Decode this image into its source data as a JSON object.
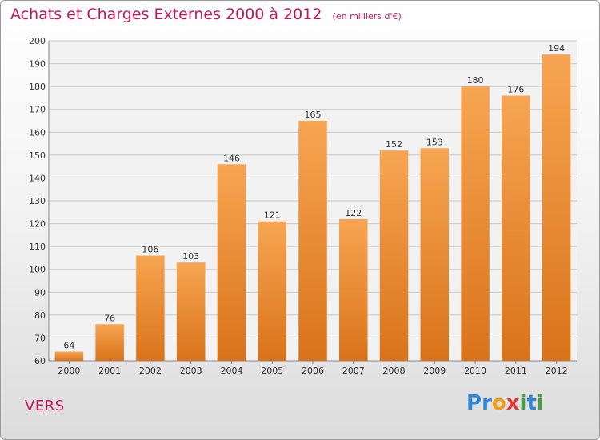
{
  "header": {
    "title": "Achats et Charges Externes 2000 à 2012",
    "subtitle": "(en milliers d'€)"
  },
  "footer": {
    "location": "VERS",
    "logo_letters": [
      {
        "ch": "P",
        "color": "#2e86d6"
      },
      {
        "ch": "r",
        "color": "#2e86d6"
      },
      {
        "ch": "o",
        "color": "#f39c12"
      },
      {
        "ch": "x",
        "color": "#e53935"
      },
      {
        "ch": "i",
        "color": "#43a047"
      },
      {
        "ch": "t",
        "color": "#2e86d6"
      },
      {
        "ch": "i",
        "color": "#43a047"
      }
    ]
  },
  "chart_data": {
    "type": "bar",
    "title": "Achats et Charges Externes 2000 à 2012",
    "subtitle": "(en milliers d'€)",
    "categories": [
      "2000",
      "2001",
      "2002",
      "2003",
      "2004",
      "2005",
      "2006",
      "2007",
      "2008",
      "2009",
      "2010",
      "2011",
      "2012"
    ],
    "values": [
      64,
      76,
      106,
      103,
      146,
      121,
      165,
      122,
      152,
      153,
      180,
      176,
      194
    ],
    "ylim": [
      60,
      200
    ],
    "yticks": [
      60,
      70,
      80,
      90,
      100,
      110,
      120,
      130,
      140,
      150,
      160,
      170,
      180,
      190,
      200
    ],
    "grid": true,
    "bar_color": "#f0913a"
  }
}
